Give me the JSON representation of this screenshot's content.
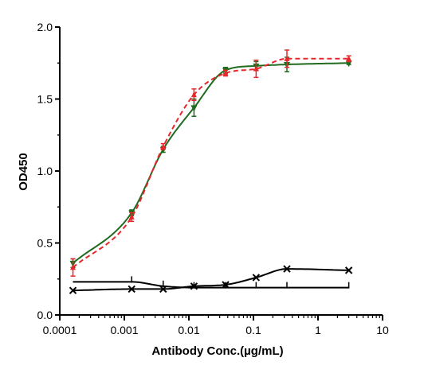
{
  "chart_data": {
    "type": "line",
    "title": "",
    "xlabel": "Antibody Conc.(µg/mL)",
    "ylabel": "OD450",
    "xscale": "log",
    "xlim": [
      0.0001,
      10
    ],
    "ylim": [
      0.0,
      2.0
    ],
    "x_ticks": [
      "0.0001",
      "0.001",
      "0.01",
      "0.1",
      "1",
      "10"
    ],
    "y_ticks": [
      "0.0",
      "0.5",
      "1.0",
      "1.5",
      "2.0"
    ],
    "grid": false,
    "legend": "none",
    "x": [
      0.00016,
      0.0013,
      0.004,
      0.012,
      0.037,
      0.11,
      0.33,
      3.0
    ],
    "series": [
      {
        "color": "#1f6b1f",
        "marker": "triangle-down",
        "line": "solid",
        "values": [
          0.36,
          0.71,
          1.15,
          1.44,
          1.7,
          1.73,
          1.74,
          1.75
        ],
        "errors": [
          0.03,
          0.02,
          0.02,
          0.06,
          0.02,
          0.03,
          0.05,
          0.01
        ]
      },
      {
        "color": "#e8262b",
        "marker": "triangle-up",
        "line": "dashed",
        "values": [
          0.33,
          0.68,
          1.17,
          1.53,
          1.68,
          1.71,
          1.78,
          1.78
        ],
        "errors": [
          0.06,
          0.03,
          0.02,
          0.04,
          0.02,
          0.06,
          0.06,
          0.02
        ]
      },
      {
        "color": "#000000",
        "marker": "cross",
        "line": "solid",
        "values": [
          0.17,
          0.18,
          0.18,
          0.2,
          0.21,
          0.26,
          0.32,
          0.31
        ],
        "errors": [
          0.0,
          0.0,
          0.0,
          0.0,
          0.0,
          0.0,
          0.0,
          0.0
        ]
      },
      {
        "color": "#000000",
        "marker": "tick",
        "line": "solid",
        "values": [
          0.23,
          0.23,
          0.2,
          0.19,
          0.19,
          0.19,
          0.19,
          0.19
        ],
        "errors": [
          0.0,
          0.0,
          0.0,
          0.0,
          0.0,
          0.0,
          0.0,
          0.0
        ]
      }
    ]
  }
}
